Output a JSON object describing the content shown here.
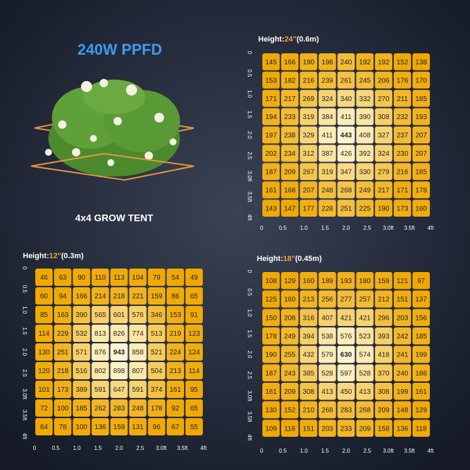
{
  "header": {
    "title": "240W PPFD",
    "subtitle": "4x4 GROW TENT"
  },
  "grids": [
    {
      "height_prefix": "Height:",
      "height": "24\"",
      "height_metric": "(0.6m)",
      "rows": [
        [
          145,
          166,
          190,
          198,
          240,
          192,
          192,
          152,
          138
        ],
        [
          153,
          182,
          216,
          239,
          261,
          245,
          206,
          176,
          170
        ],
        [
          171,
          217,
          269,
          324,
          340,
          332,
          270,
          211,
          185
        ],
        [
          194,
          233,
          319,
          384,
          411,
          390,
          308,
          232,
          193
        ],
        [
          197,
          238,
          329,
          411,
          443,
          408,
          327,
          237,
          207
        ],
        [
          202,
          234,
          312,
          387,
          426,
          392,
          324,
          230,
          207
        ],
        [
          187,
          209,
          267,
          319,
          347,
          330,
          279,
          216,
          185
        ],
        [
          161,
          168,
          207,
          248,
          268,
          249,
          217,
          171,
          178
        ],
        [
          143,
          147,
          177,
          228,
          251,
          225,
          190,
          173,
          160
        ]
      ],
      "y_labels": [
        "0",
        "0.5",
        "1.0",
        "1.5",
        "2.0",
        "2.5",
        "3.0ft",
        "3.5ft",
        "4ft"
      ],
      "x_labels": [
        "0",
        "0.5",
        "1.0",
        "1.5",
        "2.0",
        "2.5",
        "3.0ft",
        "3.5ft",
        "4ft"
      ]
    },
    {
      "height_prefix": "Height:",
      "height": "12\"",
      "height_metric": "(0.3m)",
      "rows": [
        [
          46,
          63,
          90,
          110,
          113,
          104,
          79,
          54,
          49
        ],
        [
          60,
          94,
          166,
          214,
          218,
          221,
          159,
          86,
          65
        ],
        [
          85,
          163,
          390,
          565,
          601,
          576,
          346,
          153,
          91
        ],
        [
          114,
          229,
          532,
          813,
          826,
          774,
          513,
          219,
          123
        ],
        [
          130,
          251,
          571,
          876,
          943,
          858,
          521,
          224,
          124
        ],
        [
          120,
          218,
          516,
          802,
          898,
          807,
          504,
          213,
          114
        ],
        [
          101,
          173,
          389,
          591,
          647,
          591,
          374,
          161,
          95
        ],
        [
          72,
          100,
          185,
          262,
          283,
          248,
          178,
          92,
          65
        ],
        [
          64,
          78,
          100,
          136,
          159,
          131,
          96,
          67,
          55
        ]
      ],
      "y_labels": [
        "0",
        "0.5",
        "1.0",
        "1.5",
        "2.0",
        "2.5",
        "3.0ft",
        "3.5ft",
        "4ft"
      ],
      "x_labels": [
        "0",
        "0.5",
        "1.0",
        "1.5",
        "2.0",
        "2.5",
        "3.0ft",
        "3.5ft",
        "4ft"
      ]
    },
    {
      "height_prefix": "Height:",
      "height": "18\"",
      "height_metric": "(0.45m)",
      "rows": [
        [
          108,
          129,
          160,
          189,
          193,
          180,
          159,
          121,
          97
        ],
        [
          125,
          160,
          213,
          256,
          277,
          257,
          212,
          151,
          137
        ],
        [
          150,
          208,
          316,
          407,
          421,
          421,
          296,
          203,
          156
        ],
        [
          178,
          249,
          394,
          538,
          576,
          523,
          393,
          242,
          185
        ],
        [
          190,
          255,
          432,
          579,
          630,
          574,
          418,
          241,
          199
        ],
        [
          187,
          243,
          385,
          528,
          597,
          528,
          370,
          240,
          186
        ],
        [
          161,
          209,
          308,
          413,
          450,
          413,
          308,
          199,
          161
        ],
        [
          130,
          152,
          210,
          268,
          283,
          268,
          209,
          148,
          129
        ],
        [
          109,
          116,
          151,
          203,
          233,
          209,
          158,
          136,
          118
        ]
      ],
      "y_labels": [
        "0",
        "0.5",
        "1.0",
        "1.5",
        "2.0",
        "2.5",
        "3.0ft",
        "3.5ft",
        "4ft"
      ],
      "x_labels": [
        "0",
        "0.5",
        "1.0",
        "1.5",
        "2.0",
        "2.5",
        "3.0ft",
        "3.5ft",
        "4ft"
      ]
    }
  ]
}
